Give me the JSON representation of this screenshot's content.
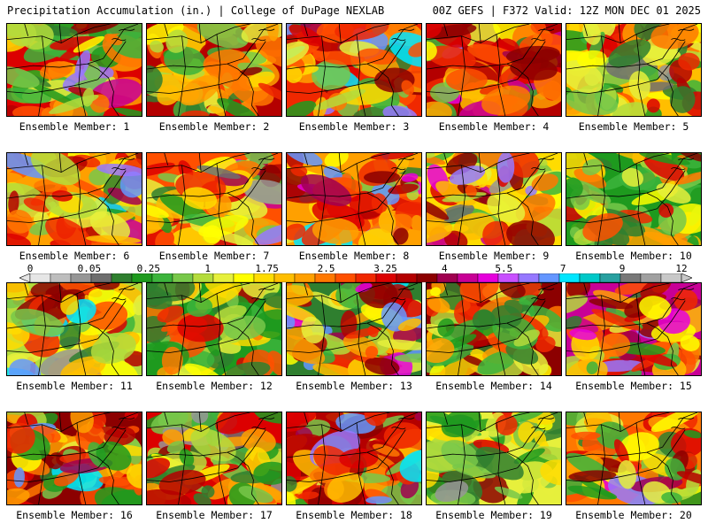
{
  "header": {
    "title_left": "Precipitation Accumulation (in.) | College of DuPage NEXLAB",
    "title_right": "00Z GEFS | F372 Valid: 12Z MON DEC 01 2025"
  },
  "panels": [
    {
      "label": "Ensemble Member: 1"
    },
    {
      "label": "Ensemble Member: 2"
    },
    {
      "label": "Ensemble Member: 3"
    },
    {
      "label": "Ensemble Member: 4"
    },
    {
      "label": "Ensemble Member: 5"
    },
    {
      "label": "Ensemble Member: 6"
    },
    {
      "label": "Ensemble Member: 7"
    },
    {
      "label": "Ensemble Member: 8"
    },
    {
      "label": "Ensemble Member: 9"
    },
    {
      "label": "Ensemble Member: 10"
    },
    {
      "label": "Ensemble Member: 11"
    },
    {
      "label": "Ensemble Member: 12"
    },
    {
      "label": "Ensemble Member: 13"
    },
    {
      "label": "Ensemble Member: 14"
    },
    {
      "label": "Ensemble Member: 15"
    },
    {
      "label": "Ensemble Member: 16"
    },
    {
      "label": "Ensemble Member: 17"
    },
    {
      "label": "Ensemble Member: 18"
    },
    {
      "label": "Ensemble Member: 19"
    },
    {
      "label": "Ensemble Member: 20"
    }
  ],
  "colorbar": {
    "tick_labels": [
      "0",
      "0.05",
      "0.25",
      "1",
      "1.75",
      "2.5",
      "3.25",
      "4",
      "5.5",
      "7",
      "9",
      "12"
    ],
    "colors": [
      "#e6e6e6",
      "#bdbdbd",
      "#969696",
      "#6e6e6e",
      "#2f7f2f",
      "#1e9a1e",
      "#3cb43c",
      "#78c84a",
      "#b4dc3c",
      "#e6f03c",
      "#ffff00",
      "#ffdc00",
      "#ffbe00",
      "#ffa000",
      "#ff7800",
      "#ff5000",
      "#f02800",
      "#dc0000",
      "#b40000",
      "#8c0000",
      "#a00050",
      "#c80096",
      "#e600dc",
      "#c850ff",
      "#9678ff",
      "#6496ff",
      "#00e6ff",
      "#00c8c8",
      "#28a0a0",
      "#787878",
      "#a0a0a0",
      "#c8c8c8"
    ]
  }
}
